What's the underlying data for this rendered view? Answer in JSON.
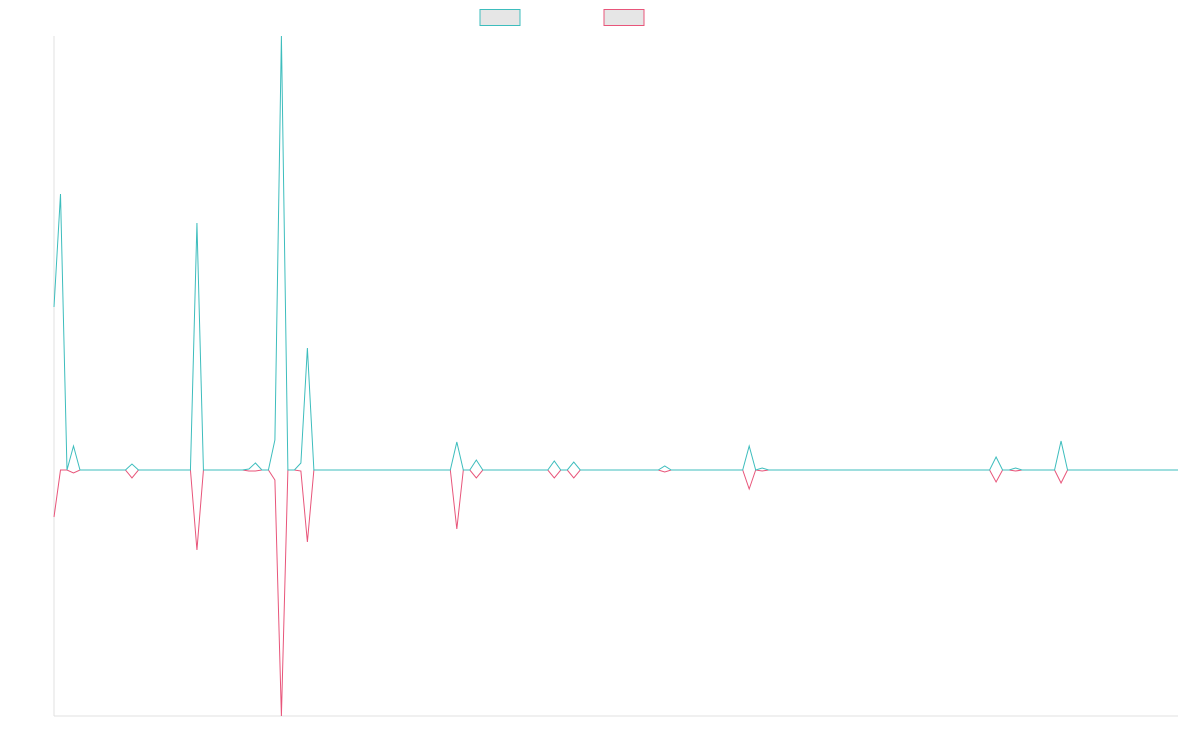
{
  "chart_data": {
    "type": "line",
    "x": [
      0,
      1,
      2,
      3,
      4,
      11,
      12,
      13,
      21,
      22,
      23,
      29,
      30,
      31,
      32,
      33,
      34,
      35,
      36,
      37,
      38,
      39,
      40,
      61,
      62,
      63,
      64,
      65,
      66,
      76,
      77,
      78,
      79,
      80,
      81,
      93,
      94,
      95,
      106,
      107,
      108,
      109,
      110,
      144,
      145,
      146,
      147,
      148,
      149,
      154,
      155,
      156,
      173
    ],
    "xlim": [
      0,
      173
    ],
    "ylim": [
      -246,
      434
    ],
    "series": [
      {
        "color": "#3dbdbd",
        "values": [
          163,
          276,
          0,
          24,
          0,
          0,
          6,
          0,
          0,
          247,
          0,
          0,
          1,
          7,
          0,
          0,
          30,
          434,
          0,
          0,
          7,
          122,
          0,
          0,
          28,
          0,
          0,
          10,
          0,
          0,
          9,
          0,
          0,
          8,
          0,
          0,
          4,
          0,
          0,
          24,
          0,
          2,
          0,
          0,
          13,
          0,
          0,
          2,
          0,
          0,
          29,
          0,
          0
        ]
      },
      {
        "color": "#e8557a",
        "values": [
          -47,
          0,
          0,
          -3,
          0,
          0,
          -8,
          0,
          0,
          -80,
          0,
          0,
          -1,
          -1,
          0,
          0,
          -10,
          -246,
          0,
          0,
          -1,
          -72,
          0,
          0,
          -59,
          0,
          0,
          -8,
          0,
          0,
          -8,
          0,
          0,
          -8,
          0,
          0,
          -2,
          0,
          0,
          -19,
          0,
          -1,
          0,
          0,
          -12,
          0,
          0,
          -1,
          0,
          0,
          -13,
          0,
          0
        ]
      }
    ]
  }
}
